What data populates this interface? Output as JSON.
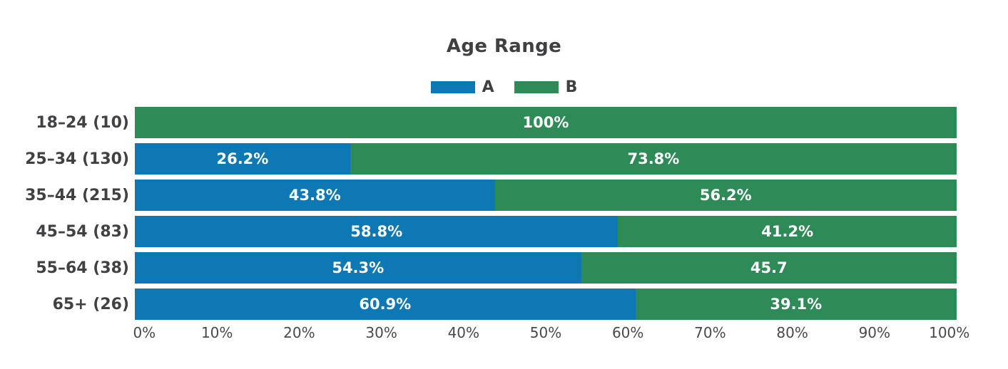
{
  "chart_data": {
    "type": "bar",
    "orientation": "horizontal",
    "stacked": true,
    "title": "Age Range",
    "legend_position": "top",
    "grid": false,
    "xlim": [
      0,
      100
    ],
    "x_ticks": [
      "0%",
      "10%",
      "20%",
      "30%",
      "40%",
      "50%",
      "60%",
      "70%",
      "80%",
      "90%",
      "100%"
    ],
    "categories": [
      "18–24 (10)",
      "25–34 (130)",
      "35–44 (215)",
      "45–54 (83)",
      "55–64 (38)",
      "65+ (26)"
    ],
    "series": [
      {
        "name": "A",
        "color": "#0d78b4",
        "values": [
          0,
          26.2,
          43.8,
          58.8,
          54.3,
          60.9
        ],
        "labels": [
          "",
          "26.2%",
          "43.8%",
          "58.8%",
          "54.3%",
          "60.9%"
        ]
      },
      {
        "name": "B",
        "color": "#2e8b57",
        "values": [
          100,
          73.8,
          56.2,
          41.2,
          45.7,
          39.1
        ],
        "labels": [
          "100%",
          "73.8%",
          "56.2%",
          "41.2%",
          "45.7",
          "39.1%"
        ]
      }
    ],
    "colors": {
      "background": "#ffffff",
      "title_text": "#3e4043",
      "axis_text": "#47494c",
      "bar_label_text": "#ffffff"
    }
  }
}
